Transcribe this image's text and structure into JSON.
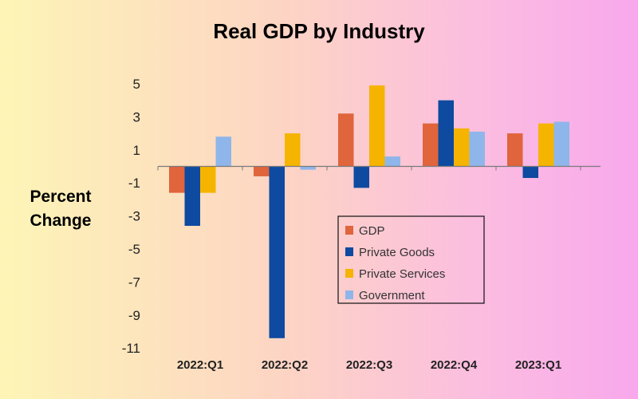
{
  "chart_data": {
    "type": "bar",
    "title": "Real GDP by Industry",
    "ylabel": [
      "Percent",
      "Change"
    ],
    "xlabel": "",
    "categories": [
      "2022:Q1",
      "2022:Q2",
      "2022:Q3",
      "2022:Q4",
      "2023:Q1"
    ],
    "series": [
      {
        "name": "GDP",
        "color": "#e0643c",
        "values": [
          -1.6,
          -0.6,
          3.2,
          2.6,
          2.0
        ]
      },
      {
        "name": "Private Goods",
        "color": "#0d4aa0",
        "values": [
          -3.6,
          -10.4,
          -1.3,
          4.0,
          -0.7
        ]
      },
      {
        "name": "Private Services",
        "color": "#f5b400",
        "values": [
          -1.6,
          2.0,
          4.9,
          2.3,
          2.6
        ]
      },
      {
        "name": "Government",
        "color": "#8fb6ea",
        "values": [
          1.8,
          -0.2,
          0.6,
          2.1,
          2.7
        ]
      }
    ],
    "yticks": [
      5,
      3,
      1,
      -1,
      -3,
      -5,
      -7,
      -9,
      -11
    ],
    "ylim": [
      -11.5,
      5.5
    ],
    "legend": "inside-bottom-right",
    "grid": false
  }
}
